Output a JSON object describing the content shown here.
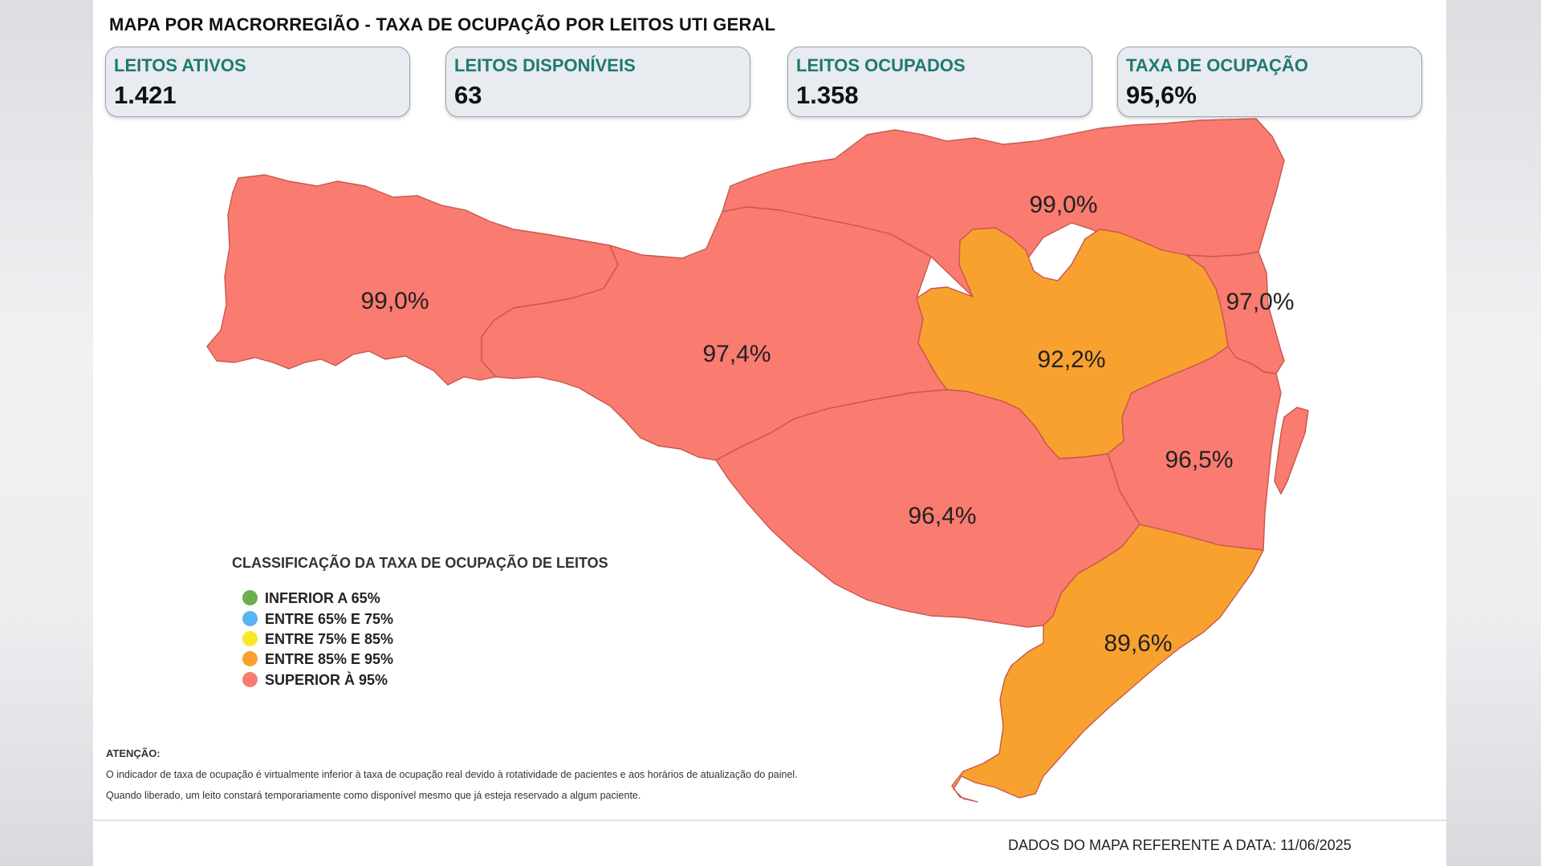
{
  "header": {
    "title": "MAPA POR MACRORREGIÃO - TAXA DE OCUPAÇÃO POR LEITOS UTI GERAL"
  },
  "cards": [
    {
      "label": "LEITOS ATIVOS",
      "value": "1.421"
    },
    {
      "label": "LEITOS DISPONÍVEIS",
      "value": "63"
    },
    {
      "label": "LEITOS OCUPADOS",
      "value": "1.358"
    },
    {
      "label": "TAXA DE OCUPAÇÃO",
      "value": "95,6%"
    }
  ],
  "regions": [
    {
      "id": "extremo-oeste",
      "rate": "99,0%",
      "color": "#fa7b70"
    },
    {
      "id": "meio-oeste",
      "rate": "97,4%",
      "color": "#fa7b70"
    },
    {
      "id": "norte",
      "rate": "99,0%",
      "color": "#fa7b70"
    },
    {
      "id": "vale",
      "rate": "92,2%",
      "color": "#f9a12e"
    },
    {
      "id": "nordeste",
      "rate": "97,0%",
      "color": "#fa7b70"
    },
    {
      "id": "serra",
      "rate": "96,4%",
      "color": "#fa7b70"
    },
    {
      "id": "grande-florianopolis",
      "rate": "96,5%",
      "color": "#fa7b70"
    },
    {
      "id": "sul",
      "rate": "89,6%",
      "color": "#f9a12e"
    }
  ],
  "legend": {
    "title": "CLASSIFICAÇÃO DA TAXA DE OCUPAÇÃO DE LEITOS",
    "items": [
      {
        "label": "INFERIOR A 65%",
        "color": "#6ab04c"
      },
      {
        "label": "ENTRE 65% E 75%",
        "color": "#5ab4f0"
      },
      {
        "label": "ENTRE 75% E 85%",
        "color": "#f7e82a"
      },
      {
        "label": "ENTRE 85% E 95%",
        "color": "#f9a12e"
      },
      {
        "label": "SUPERIOR À 95%",
        "color": "#fa7b70"
      }
    ]
  },
  "attention": {
    "title": "ATENÇÃO:",
    "lines": [
      "O indicador de taxa de ocupação é virtualmente inferior à taxa de ocupação real devido à rotatividade de pacientes e aos horários de atualização do painel.",
      "Quando liberado, um leito constará temporariamente como disponível mesmo que já esteja reservado a algum paciente."
    ]
  },
  "footer": {
    "text": "DADOS DO MAPA REFERENTE A DATA:  11/06/2025"
  }
}
